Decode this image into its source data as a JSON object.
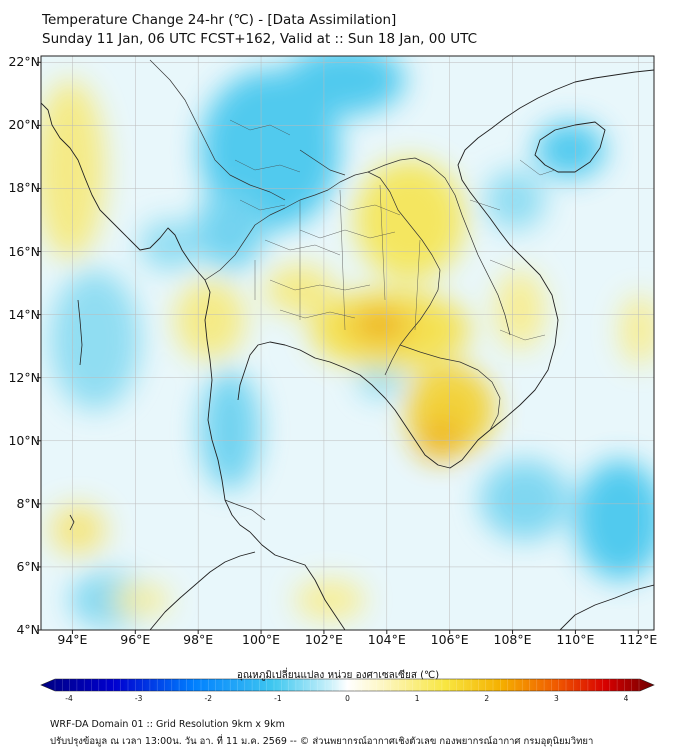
{
  "header": {
    "title_line1": "Temperature Change 24-hr (℃) - [Data Assimilation]",
    "title_line2": "Sunday 11 Jan, 06 UTC FCST+162, Valid at :: Sun 18 Jan, 00 UTC"
  },
  "map": {
    "lon_range": [
      93,
      112.5
    ],
    "lat_range": [
      4,
      22.2
    ],
    "lat_labels": [
      "22°N",
      "20°N",
      "18°N",
      "16°N",
      "14°N",
      "12°N",
      "10°N",
      "8°N",
      "6°N",
      "4°N"
    ],
    "lon_labels": [
      "94°E",
      "96°E",
      "98°E",
      "100°E",
      "102°E",
      "104°E",
      "106°E",
      "108°E",
      "110°E",
      "112°E"
    ],
    "lat_values": [
      22,
      20,
      18,
      16,
      14,
      12,
      10,
      8,
      6,
      4
    ],
    "lon_values": [
      94,
      96,
      98,
      100,
      102,
      104,
      106,
      108,
      110,
      112
    ]
  },
  "colorbar": {
    "title": "อุณหภูมิเปลี่ยนแปลง หน่วย องศาเซลเซียส (℃)",
    "min": -4,
    "max": 4,
    "tick_labels": [
      "-4",
      "-3",
      "-2",
      "-1",
      "0",
      "1",
      "2",
      "3",
      "4"
    ]
  },
  "footer": {
    "line1": "WRF-DA Domain 01 :: Grid Resolution 9km x 9km",
    "line2": "ปรับปรุงข้อมูล ณ เวลา 13:00น. วัน อา. ที่ 11 ม.ค. 2569 -- © ส่วนพยากรณ์อากาศเชิงตัวเลข กองพยากรณ์อากาศ กรมอุตุนิยมวิทยา"
  },
  "colors": {
    "cold": "#3dc8f0",
    "neutral": "#e6f7fb",
    "warm": "#f7e64a",
    "hot": "#f0b000",
    "coast": "#222222",
    "border": "#333333",
    "grid": "#bbbbbb"
  }
}
